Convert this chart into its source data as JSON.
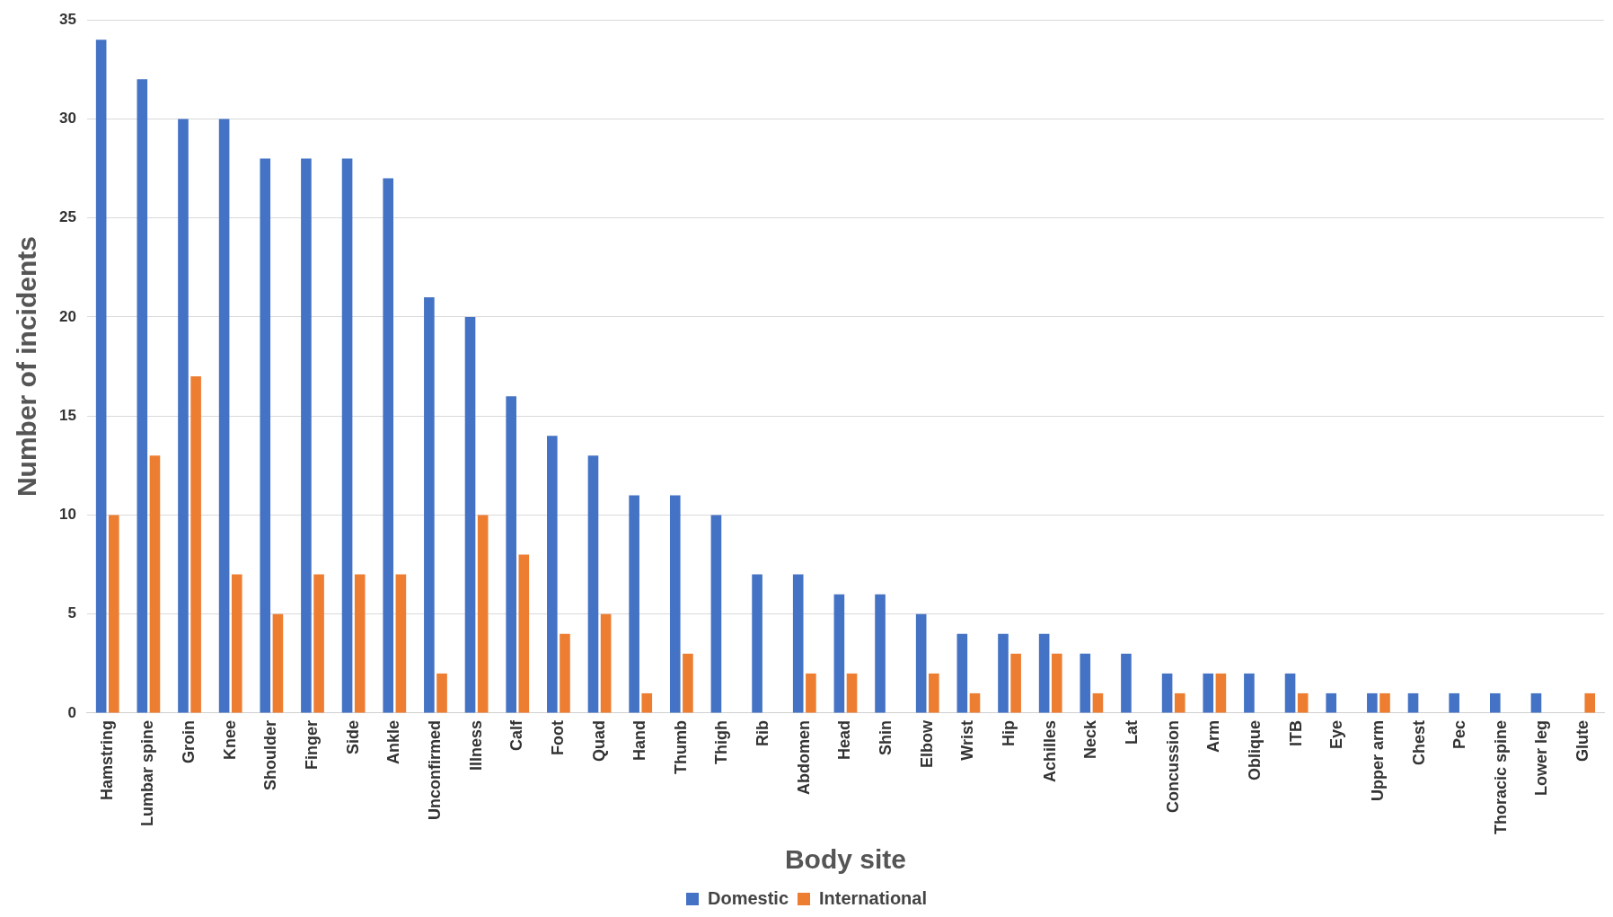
{
  "chart_data": {
    "type": "bar",
    "xlabel": "Body site",
    "ylabel": "Number of incidents",
    "categories": [
      "Hamstring",
      "Lumbar spine",
      "Groin",
      "Knee",
      "Shoulder",
      "Finger",
      "Side",
      "Ankle",
      "Unconfirmed",
      "Illness",
      "Calf",
      "Foot",
      "Quad",
      "Hand",
      "Thumb",
      "Thigh",
      "Rib",
      "Abdomen",
      "Head",
      "Shin",
      "Elbow",
      "Wrist",
      "Hip",
      "Achilles",
      "Neck",
      "Lat",
      "Concussion",
      "Arm",
      "Oblique",
      "ITB",
      "Eye",
      "Upper arm",
      "Chest",
      "Pec",
      "Thoracic spine",
      "Lower leg",
      "Glute"
    ],
    "series": [
      {
        "name": "Domestic",
        "color": "#4472c4",
        "values": [
          34,
          32,
          30,
          30,
          28,
          28,
          28,
          27,
          21,
          20,
          16,
          14,
          13,
          11,
          11,
          10,
          7,
          7,
          6,
          6,
          5,
          4,
          4,
          4,
          3,
          3,
          2,
          2,
          2,
          2,
          1,
          1,
          1,
          1,
          1,
          1,
          null
        ]
      },
      {
        "name": "International",
        "color": "#ed7d31",
        "values": [
          10,
          13,
          17,
          7,
          5,
          7,
          7,
          7,
          2,
          10,
          8,
          4,
          5,
          1,
          3,
          null,
          null,
          2,
          2,
          null,
          2,
          1,
          3,
          3,
          1,
          null,
          1,
          2,
          null,
          1,
          null,
          1,
          null,
          null,
          null,
          null,
          1
        ]
      }
    ],
    "ylim": [
      0,
      35
    ],
    "yticks": [
      0,
      5,
      10,
      15,
      20,
      25,
      30,
      35
    ],
    "grid": "y",
    "legend": "bottom"
  }
}
